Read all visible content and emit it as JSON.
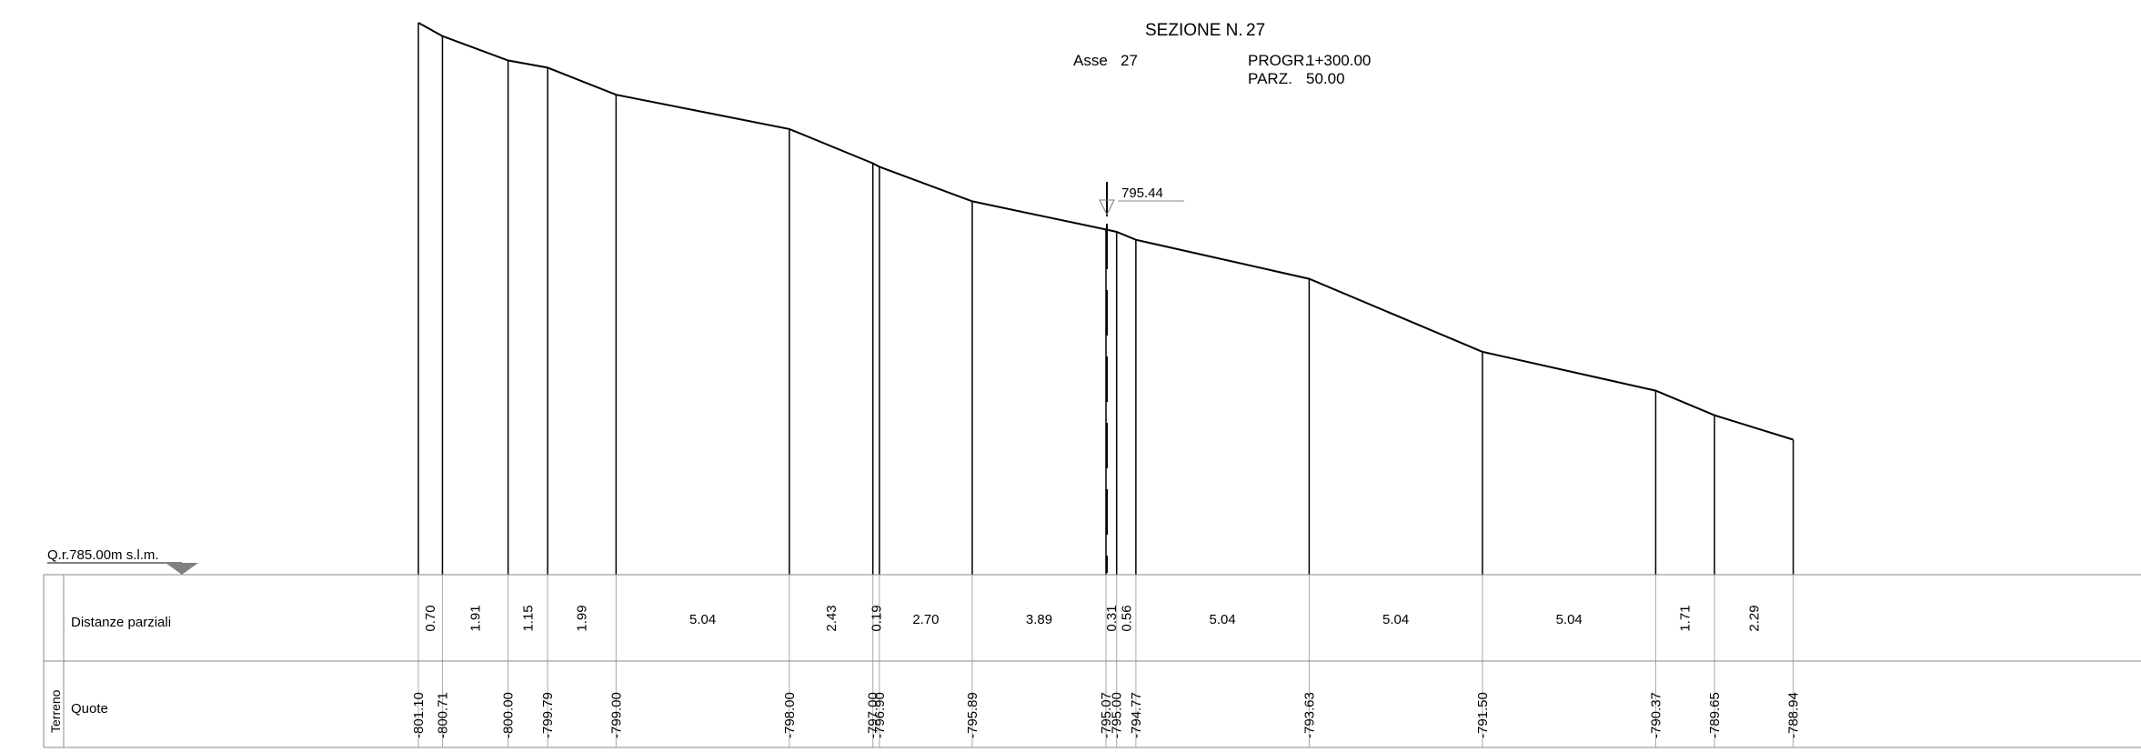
{
  "header": {
    "section_label": "SEZIONE N.",
    "section_number": "27",
    "axis_label": "Asse",
    "axis_number": "27",
    "progr_label": "PROGR.",
    "progr_value": "1+300.00",
    "parz_label": "PARZ.",
    "parz_value": "50.00"
  },
  "reference": {
    "label": "Q.r.785.00m s.l.m.",
    "elevation": 785.0
  },
  "axis_marker": {
    "elevation_label": "795.44"
  },
  "table": {
    "group_label": "Terreno",
    "row_distances_label": "Distanze parziali",
    "row_quotes_label": "Quote"
  },
  "chart_data": {
    "type": "line",
    "title": "",
    "xlabel": "",
    "ylabel": "",
    "reference_elevation": 785.0,
    "points": [
      {
        "x": -29.78,
        "elevation": "801.10"
      },
      {
        "x": -29.08,
        "elevation": "800.71"
      },
      {
        "x": -27.17,
        "elevation": "800.00"
      },
      {
        "x": -26.02,
        "elevation": "799.79"
      },
      {
        "x": -24.03,
        "elevation": "799.00"
      },
      {
        "x": -18.99,
        "elevation": "798.00"
      },
      {
        "x": -16.56,
        "elevation": "797.00"
      },
      {
        "x": -16.37,
        "elevation": "796.90"
      },
      {
        "x": -13.67,
        "elevation": "795.89"
      },
      {
        "x": -9.78,
        "elevation": "795.07"
      },
      {
        "x": -9.47,
        "elevation": "795.00"
      },
      {
        "x": -8.91,
        "elevation": "794.77"
      },
      {
        "x": -3.87,
        "elevation": "793.63"
      },
      {
        "x": 1.17,
        "elevation": "791.50"
      },
      {
        "x": 6.21,
        "elevation": "790.37"
      },
      {
        "x": 7.92,
        "elevation": "789.65"
      },
      {
        "x": 10.21,
        "elevation": "788.94"
      }
    ],
    "partial_distances": [
      "0.70",
      "1.91",
      "1.15",
      "1.99",
      "5.04",
      "2.43",
      "0.19",
      "2.70",
      "3.89",
      "0.31",
      "0.56",
      "5.04",
      "5.04",
      "5.04",
      "1.71",
      "2.29"
    ]
  }
}
